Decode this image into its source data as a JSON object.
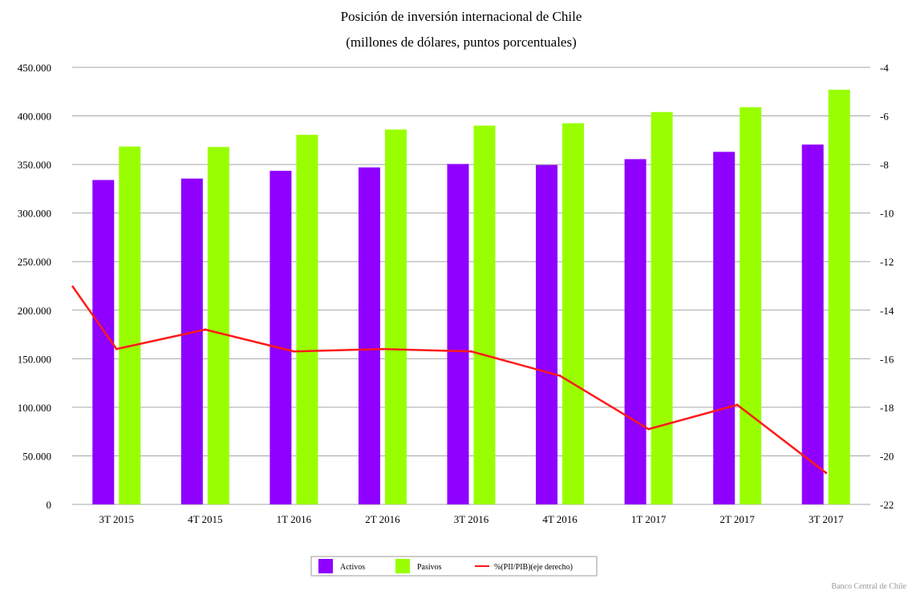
{
  "chart_data": {
    "type": "bar",
    "title": "Posición de inversión internacional de Chile",
    "subtitle": "(millones de dólares, puntos porcentuales)",
    "categories": [
      "3T 2015",
      "4T 2015",
      "1T 2016",
      "2T 2016",
      "3T 2016",
      "4T 2016",
      "1T 2017",
      "2T 2017",
      "3T 2017"
    ],
    "series": [
      {
        "name": "Activos",
        "type": "bar",
        "axis": "left",
        "color": "#8f00ff",
        "values": [
          334000,
          335500,
          343500,
          347000,
          350500,
          349500,
          355500,
          363000,
          370500
        ]
      },
      {
        "name": "Pasivos",
        "type": "bar",
        "axis": "left",
        "color": "#99ff00",
        "values": [
          368500,
          368000,
          380500,
          386000,
          390000,
          392500,
          404000,
          409000,
          427000
        ]
      },
      {
        "name": "%(PII/PIB)(eje derecho)",
        "type": "line",
        "axis": "right",
        "color": "#ff1a1a",
        "values": [
          -15.6,
          -14.8,
          -15.7,
          -15.6,
          -15.7,
          -16.7,
          -18.9,
          -17.9,
          -20.7
        ]
      }
    ],
    "line_start_value": -13.0,
    "y_left": {
      "min": 0,
      "max": 450000,
      "ticks": [
        "0",
        "50.000",
        "100.000",
        "150.000",
        "200.000",
        "250.000",
        "300.000",
        "350.000",
        "400.000",
        "450.000"
      ]
    },
    "y_right": {
      "min": -22,
      "max": -4,
      "ticks": [
        "-22",
        "-20",
        "-18",
        "-16",
        "-14",
        "-12",
        "-10",
        "-8",
        "-6",
        "-4"
      ]
    },
    "grid": true,
    "legend_position": "bottom-center",
    "source": "Banco Central de Chile"
  }
}
